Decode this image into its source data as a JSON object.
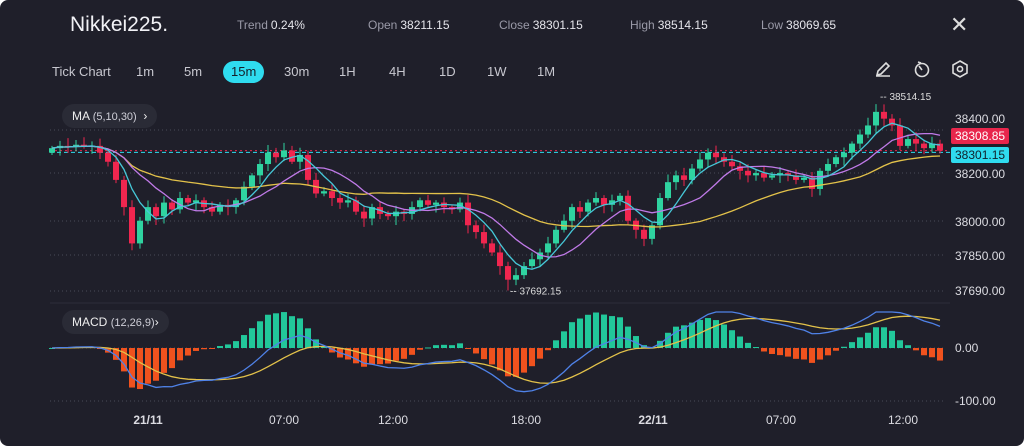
{
  "header": {
    "symbol": "Nikkei225.",
    "stats": [
      {
        "label": "Trend",
        "value": "0.24%"
      },
      {
        "label": "Open",
        "value": "38211.15"
      },
      {
        "label": "Close",
        "value": "38301.15"
      },
      {
        "label": "High",
        "value": "38514.15"
      },
      {
        "label": "Low",
        "value": "38069.65"
      }
    ],
    "close_icon": "x-icon"
  },
  "toolbar": {
    "timeframes": [
      "Tick Chart",
      "1m",
      "5m",
      "15m",
      "30m",
      "1H",
      "4H",
      "1D",
      "1W",
      "1M"
    ],
    "active": "15m",
    "tools": [
      "pencil-icon",
      "timer-icon",
      "settings-icon"
    ]
  },
  "indicators": {
    "ma_label": "MA",
    "ma_params": "(5,10,30)",
    "macd_label": "MACD",
    "macd_params": "(12,26,9)"
  },
  "colors": {
    "up": "#2fd3a0",
    "down": "#f0264f",
    "ma5": "#46c8d8",
    "ma10": "#c07ae8",
    "ma30": "#e3c24a",
    "macd": "#4f82e8",
    "signal": "#e3c24a",
    "hist_up": "#22c79a",
    "hist_down": "#f0521e",
    "accent": "#2fdcef"
  },
  "chart_data": {
    "type": "candlestick",
    "price_axis": [
      "38400.00",
      "38200.00",
      "38000.00",
      "37850.00",
      "37690.00"
    ],
    "macd_axis": [
      "0.00",
      "-100.00"
    ],
    "x_ticks": [
      "21/11",
      "07:00",
      "12:00",
      "18:00",
      "22/11",
      "07:00",
      "12:00"
    ],
    "current_price": "38308.85",
    "close_price": "38301.15",
    "high_marker": "38514.15",
    "low_marker": "37692.15",
    "closes": [
      38320,
      38330,
      38325,
      38335,
      38330,
      38330,
      38300,
      38260,
      38180,
      38060,
      37900,
      38000,
      38060,
      38020,
      38080,
      38050,
      38100,
      38080,
      38090,
      38060,
      38040,
      38070,
      38060,
      38090,
      38150,
      38200,
      38250,
      38300,
      38280,
      38310,
      38260,
      38290,
      38180,
      38120,
      38130,
      38100,
      38080,
      38090,
      38040,
      38010,
      38060,
      38030,
      38020,
      38040,
      38030,
      38060,
      38090,
      38070,
      38080,
      38060,
      38050,
      38080,
      37980,
      37950,
      37900,
      37860,
      37800,
      37740,
      37760,
      37800,
      37830,
      37860,
      37900,
      37960,
      38000,
      38060,
      38040,
      38080,
      38100,
      38070,
      38090,
      38110,
      38000,
      37960,
      37920,
      37980,
      38100,
      38170,
      38200,
      38180,
      38230,
      38270,
      38300,
      38280,
      38260,
      38240,
      38220,
      38200,
      38210,
      38190,
      38200,
      38210,
      38200,
      38180,
      38190,
      38140,
      38220,
      38250,
      38280,
      38300,
      38340,
      38380,
      38420,
      38480,
      38450,
      38420,
      38330,
      38360,
      38340,
      38320,
      38340,
      38308.85
    ]
  }
}
